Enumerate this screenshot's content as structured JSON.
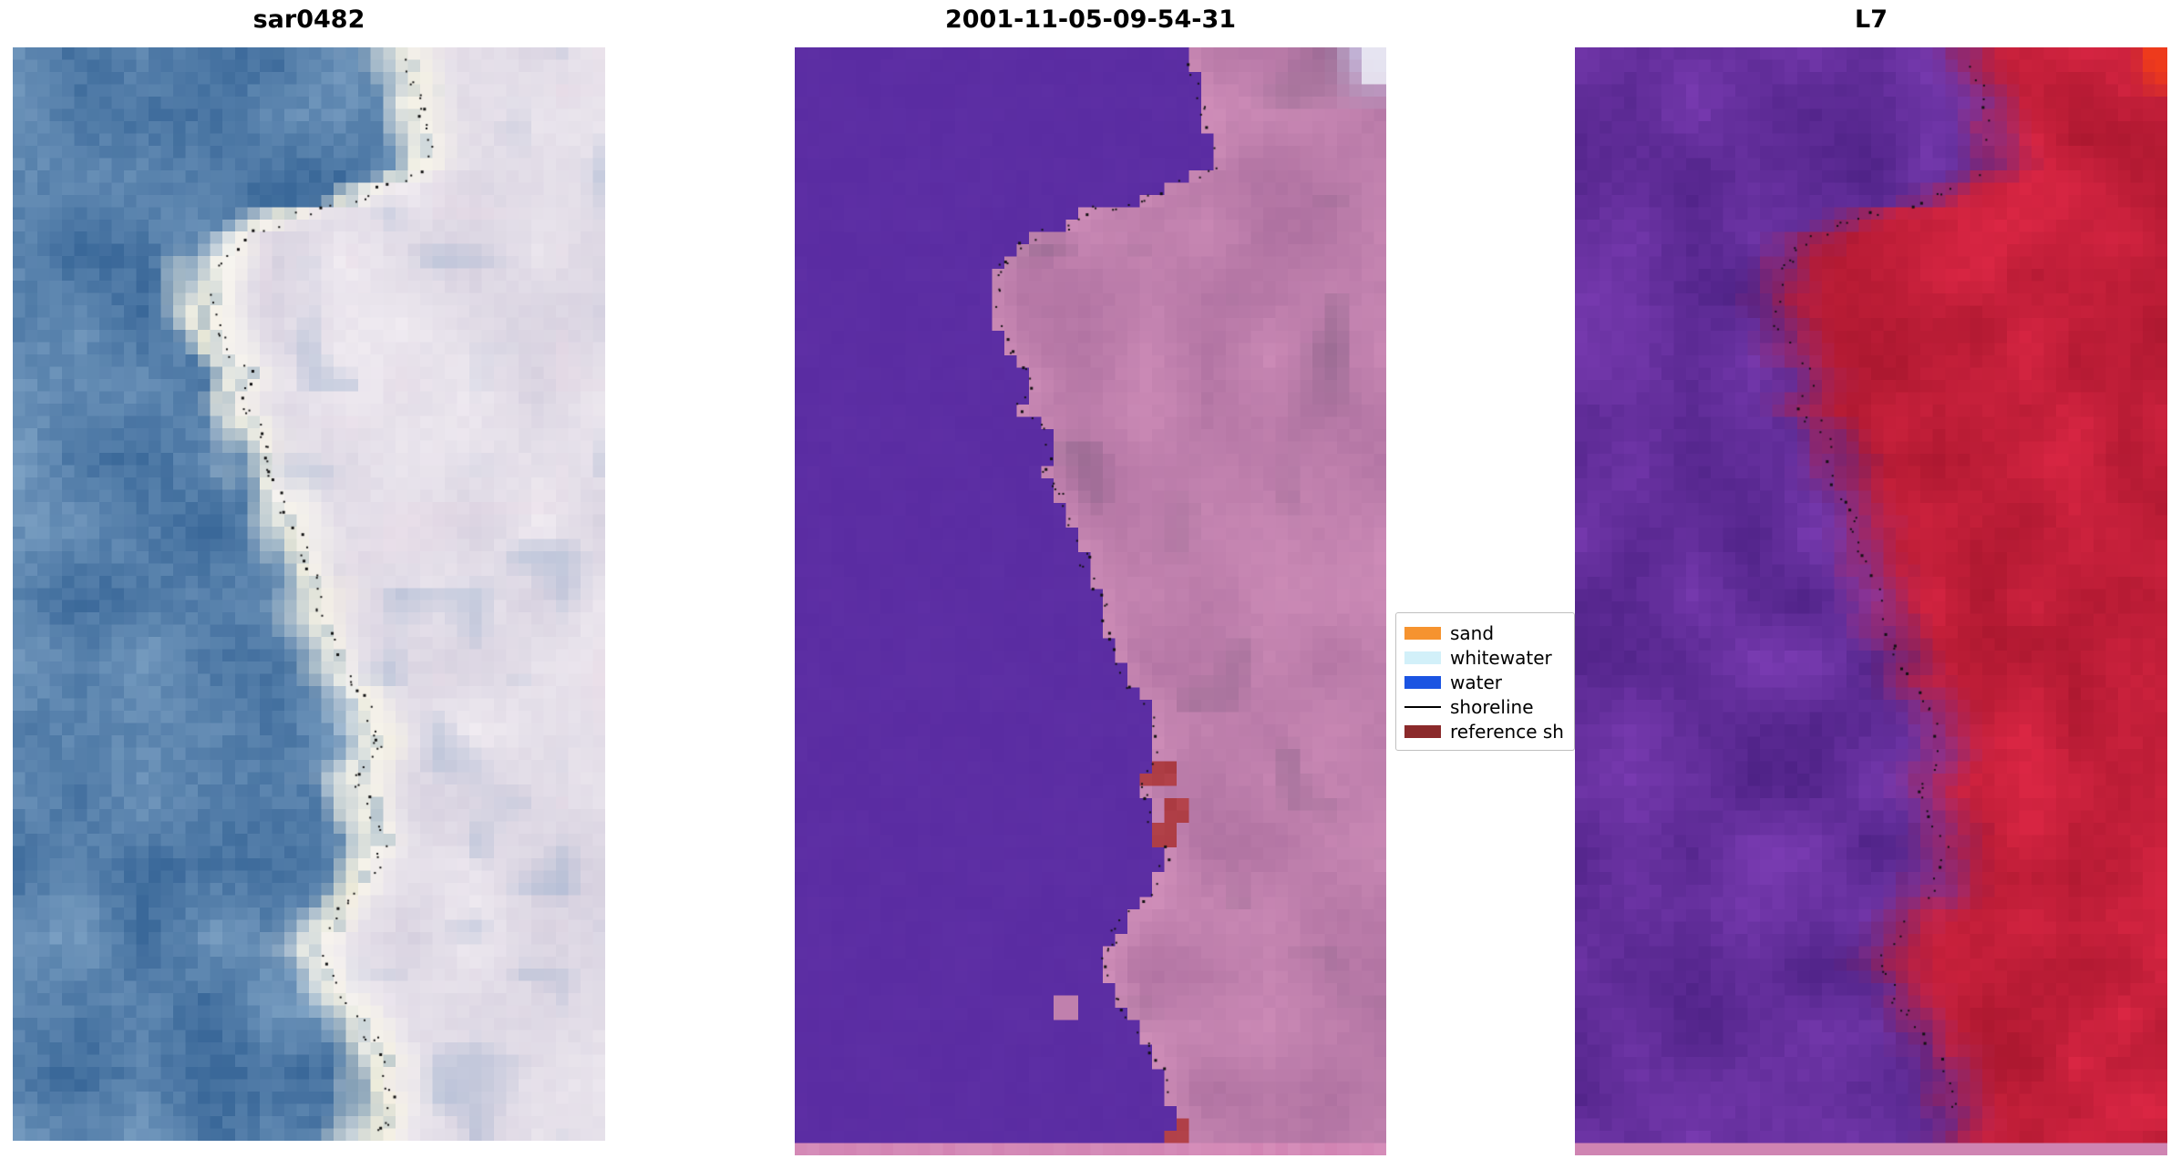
{
  "figure": {
    "panels": [
      {
        "title": "sar0482"
      },
      {
        "title": "2001-11-05-09-54-31"
      },
      {
        "title": "L7"
      }
    ],
    "legend": {
      "entries": [
        {
          "label": "sand",
          "swatch": "#f6932f",
          "type": "patch"
        },
        {
          "label": "whitewater",
          "swatch": "#d2f0f9",
          "type": "patch"
        },
        {
          "label": "water",
          "swatch": "#1b54e2",
          "type": "patch"
        },
        {
          "label": "shoreline",
          "swatch": "#000000",
          "type": "line"
        },
        {
          "label": "reference sh",
          "swatch": "#8b2a2b",
          "type": "patch"
        }
      ]
    },
    "colors": {
      "sar_water_dark": "#3a6899",
      "sar_water_light": "#85a8c9",
      "sar_surf": "#f5f0d8",
      "sar_surf_white": "#faf8f3",
      "sar_land_dark": "#cfc9da",
      "sar_land_light": "#f0ebf1",
      "sar_land_blue": "#a9b8d2",
      "sar_land_pink": "#ead9e6",
      "class_water": "#5a2ca2",
      "class_land_dark": "#ae71a0",
      "class_land_light": "#d18fba",
      "class_mauve": "#7e5f80",
      "class_shore_light": "#d795be",
      "class_red": "#b5444c",
      "class_strip": "#d182b2",
      "class_lavender": "#c9c9e8",
      "class_corner_white": "#ededf5",
      "l7_purple_dark": "#4e2286",
      "l7_purple_light": "#7e3eb6",
      "l7_red_dark": "#ad1830",
      "l7_red_bright": "#e02846",
      "l7_corner": "#ee3a1c",
      "l7_strip": "#cc7eae",
      "shoreline_dots": "#111111"
    }
  },
  "chart_data": {
    "type": "heatmap",
    "title": "",
    "axes": "off",
    "grid": false,
    "legend_position": "right of middle panel",
    "panels": [
      {
        "title": "sar0482",
        "kind": "sar_rgb_image",
        "content": "blocky satellite crop: blue water on left, bright cream whitewater band along coast, white-pink beach/land on right, black dotted shoreline"
      },
      {
        "title": "2001-11-05-09-54-31",
        "kind": "classified_image",
        "content": "flat purple water region left, pink land right, dark-red reference-shoreline patches near coast, pale lavender whitewater blocks top-right corner, pink strip across bottom, black dotted shoreline"
      },
      {
        "title": "L7",
        "kind": "landsat7_composite",
        "content": "noisy purple water left grading into red land right, bright red block top-right corner, pink strip across bottom, black dotted shoreline"
      }
    ],
    "legend_entries": [
      "sand",
      "whitewater",
      "water",
      "shoreline",
      "reference sh"
    ],
    "shoreline_path_yx": [
      [
        0.0,
        0.655
      ],
      [
        0.045,
        0.685
      ],
      [
        0.105,
        0.705
      ],
      [
        0.135,
        0.6
      ],
      [
        0.155,
        0.47
      ],
      [
        0.175,
        0.385
      ],
      [
        0.2,
        0.345
      ],
      [
        0.24,
        0.335
      ],
      [
        0.275,
        0.36
      ],
      [
        0.3,
        0.405
      ],
      [
        0.325,
        0.38
      ],
      [
        0.35,
        0.425
      ],
      [
        0.385,
        0.43
      ],
      [
        0.42,
        0.46
      ],
      [
        0.46,
        0.49
      ],
      [
        0.5,
        0.515
      ],
      [
        0.535,
        0.53
      ],
      [
        0.565,
        0.555
      ],
      [
        0.6,
        0.6
      ],
      [
        0.635,
        0.615
      ],
      [
        0.665,
        0.585
      ],
      [
        0.695,
        0.6
      ],
      [
        0.73,
        0.625
      ],
      [
        0.76,
        0.605
      ],
      [
        0.79,
        0.55
      ],
      [
        0.825,
        0.52
      ],
      [
        0.86,
        0.545
      ],
      [
        0.895,
        0.59
      ],
      [
        0.93,
        0.625
      ],
      [
        0.965,
        0.64
      ],
      [
        1.0,
        0.61
      ]
    ]
  }
}
